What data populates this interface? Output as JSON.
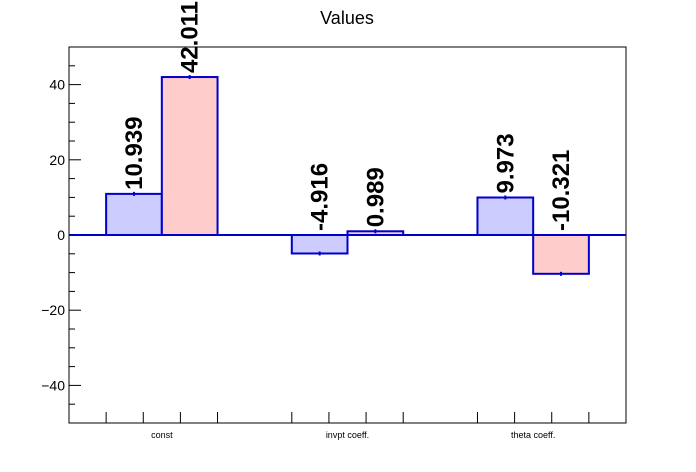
{
  "chart_data": {
    "type": "bar",
    "title": "Values",
    "xlabel": "",
    "ylabel": "",
    "categories": [
      "const",
      "invpt coeff.",
      "theta coeff."
    ],
    "series": [
      {
        "values": [
          10.939,
          -4.916,
          9.973
        ],
        "fill": "#ccccff",
        "stroke": "#0000cc"
      },
      {
        "values": [
          42.011,
          0.989,
          -10.321
        ],
        "fill": "#ffcccc",
        "stroke": "#0000cc"
      }
    ],
    "data_labels": [
      [
        "10.939",
        "-4.916",
        "9.973"
      ],
      [
        "42.011",
        "0.989",
        "-10.321"
      ]
    ],
    "ylim": [
      -50,
      50
    ],
    "yticks": [
      -40,
      -20,
      0,
      20,
      40
    ],
    "ytick_labels": [
      "−40",
      "−20",
      "0",
      "20",
      "40"
    ],
    "grid": false,
    "legend": "none",
    "axis_color": "#000000",
    "zero_line_color": "#0000cc"
  }
}
